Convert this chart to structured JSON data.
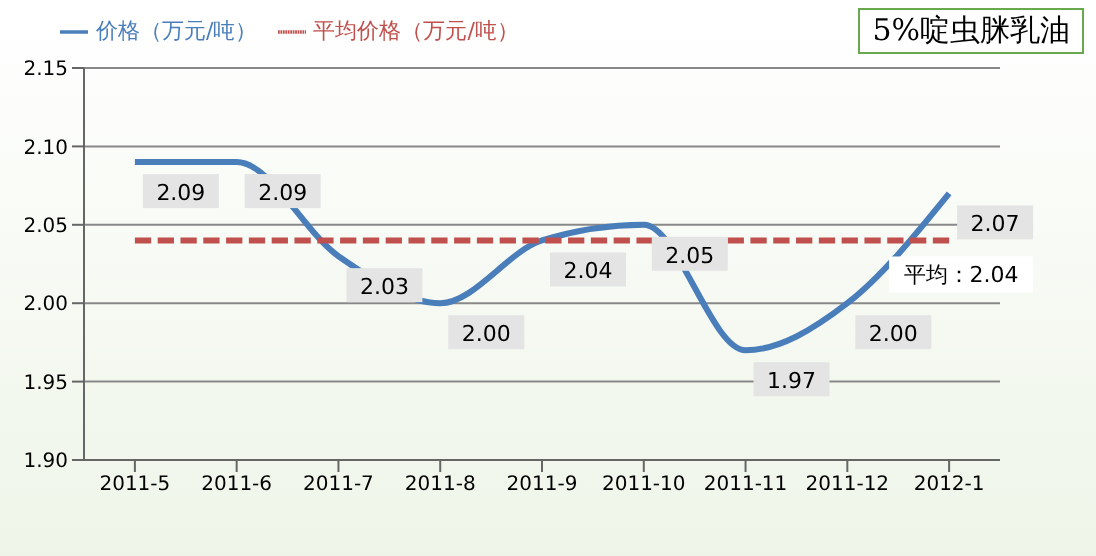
{
  "chart_data": {
    "type": "line",
    "title": "5%啶虫脒乳油",
    "categories": [
      "2011-5",
      "2011-6",
      "2011-7",
      "2011-8",
      "2011-9",
      "2011-10",
      "2011-11",
      "2011-12",
      "2012-1"
    ],
    "series": [
      {
        "name": "价格（万元/吨）",
        "color": "#4a7ebb",
        "line_style": "solid",
        "values": [
          2.09,
          2.09,
          2.03,
          2.0,
          2.04,
          2.05,
          1.97,
          2.0,
          2.07
        ],
        "value_labels": [
          "2.09",
          "2.09",
          "2.03",
          "2.00",
          "2.04",
          "2.05",
          "1.97",
          "2.00",
          "2.07"
        ]
      },
      {
        "name": "平均价格（万元/吨）",
        "color": "#c0504d",
        "line_style": "dashed",
        "values": [
          2.04,
          2.04,
          2.04,
          2.04,
          2.04,
          2.04,
          2.04,
          2.04,
          2.04
        ]
      }
    ],
    "annotations": [
      {
        "text": "平均：2.04",
        "x": "2012-1",
        "y": 2.04
      }
    ],
    "ylim": [
      1.9,
      2.15
    ],
    "yticks": [
      {
        "value": 1.9,
        "label": "1.90"
      },
      {
        "value": 1.95,
        "label": "1.95"
      },
      {
        "value": 2.0,
        "label": "2.00"
      },
      {
        "value": 2.05,
        "label": "2.05"
      },
      {
        "value": 2.1,
        "label": "2.10"
      },
      {
        "value": 2.15,
        "label": "2.15"
      }
    ],
    "grid": "y",
    "legend": "top left",
    "marker": "none"
  }
}
